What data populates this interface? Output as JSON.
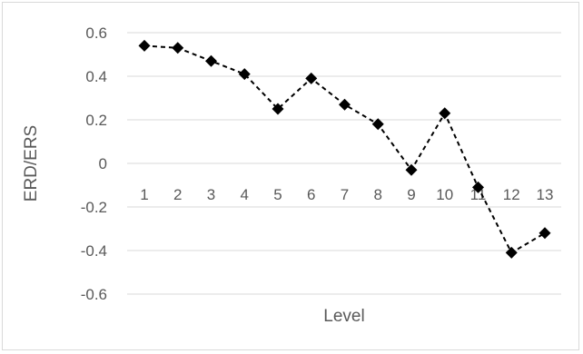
{
  "chart_data": {
    "type": "line",
    "title": "",
    "xlabel": "Level",
    "ylabel": "ERD/ERS",
    "ylim": [
      -0.6,
      0.6
    ],
    "yticks": [
      0.6,
      0.4,
      0.2,
      0,
      -0.2,
      -0.4,
      -0.6
    ],
    "ytick_labels": [
      "0.6",
      "0.4",
      "0.2",
      "0",
      "-0.2",
      "-0.4",
      "-0.6"
    ],
    "categories": [
      "1",
      "2",
      "3",
      "4",
      "5",
      "6",
      "7",
      "8",
      "9",
      "10",
      "11",
      "12",
      "13"
    ],
    "values": [
      0.54,
      0.53,
      0.47,
      0.41,
      0.25,
      0.39,
      0.27,
      0.18,
      -0.03,
      0.23,
      -0.11,
      -0.41,
      -0.32
    ],
    "grid": true,
    "line_style": "dashed",
    "marker": "diamond",
    "colors": {
      "series": "#000000",
      "grid": "#d9d9d9",
      "text": "#595959"
    }
  }
}
